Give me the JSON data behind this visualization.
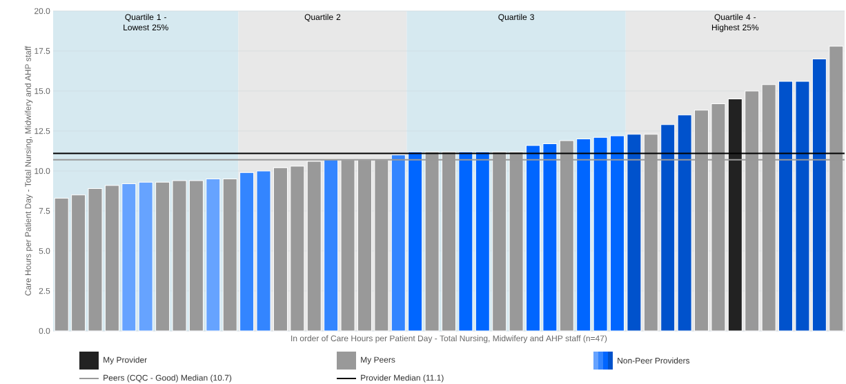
{
  "chart_data": {
    "type": "bar",
    "xlabel": "In order of Care Hours per Patient Day - Total Nursing, Midwifery and AHP staff (n=47)",
    "ylabel": "Care Hours per Patient Day - Total Nursing, Midwifery and AHP staff",
    "categories": [
      null,
      null,
      null,
      null,
      null,
      null,
      null,
      null,
      null,
      null,
      null,
      null,
      null,
      null,
      null,
      null,
      null,
      null,
      null,
      null,
      null,
      null,
      null,
      null,
      null,
      null,
      null,
      null,
      null,
      null,
      null,
      null,
      null,
      null,
      null,
      null,
      null,
      null,
      null,
      null,
      null,
      null,
      null,
      null,
      null,
      null,
      null
    ],
    "series": [
      {
        "name": "My Provider",
        "color": "#222222",
        "values": [
          null,
          null,
          null,
          null,
          null,
          null,
          null,
          null,
          null,
          null,
          null,
          null,
          null,
          null,
          null,
          null,
          null,
          null,
          null,
          null,
          null,
          null,
          null,
          null,
          null,
          null,
          null,
          null,
          null,
          null,
          null,
          null,
          null,
          null,
          null,
          null,
          null,
          null,
          null,
          null,
          14.5,
          null,
          null,
          null,
          null,
          null,
          null
        ]
      },
      {
        "name": "My Peers",
        "color": "#999999",
        "values": [
          8.3,
          8.5,
          8.9,
          9.1,
          null,
          null,
          9.3,
          9.4,
          9.4,
          null,
          9.5,
          null,
          null,
          10.2,
          10.3,
          10.6,
          null,
          10.7,
          10.7,
          10.7,
          null,
          null,
          11.2,
          11.2,
          null,
          null,
          11.2,
          11.2,
          null,
          null,
          11.9,
          null,
          null,
          null,
          null,
          12.3,
          null,
          null,
          13.8,
          14.2,
          null,
          15.0,
          15.4,
          null,
          null,
          null,
          17.8
        ]
      },
      {
        "name": "Non-Peer Providers",
        "color": "#0066ff",
        "values": [
          null,
          null,
          null,
          null,
          9.2,
          9.3,
          null,
          null,
          null,
          9.5,
          null,
          9.9,
          10.0,
          null,
          null,
          null,
          10.7,
          null,
          null,
          null,
          11.0,
          11.2,
          null,
          null,
          11.2,
          11.2,
          null,
          null,
          11.6,
          11.7,
          null,
          12.0,
          12.1,
          12.2,
          12.3,
          null,
          12.9,
          13.5,
          null,
          null,
          null,
          null,
          null,
          15.6,
          15.6,
          17.0,
          null
        ],
        "colors": [
          null,
          null,
          null,
          null,
          "#66a3ff",
          "#66a3ff",
          null,
          null,
          null,
          "#66a3ff",
          null,
          "#3385ff",
          "#3385ff",
          null,
          null,
          null,
          "#3385ff",
          null,
          null,
          null,
          "#3385ff",
          "#0066ff",
          null,
          null,
          "#0066ff",
          "#0066ff",
          null,
          null,
          "#0066ff",
          "#0066ff",
          null,
          "#0066ff",
          "#0066ff",
          "#0066ff",
          "#0052cc",
          null,
          "#0052cc",
          "#0052cc",
          null,
          null,
          null,
          null,
          null,
          "#0052cc",
          "#0052cc",
          "#0052cc",
          null
        ]
      }
    ],
    "ylim": [
      0,
      20
    ],
    "yticks": [
      {
        "value": 0,
        "label": "0.0"
      },
      {
        "value": 2.5,
        "label": "2.5"
      },
      {
        "value": 5,
        "label": "5.0"
      },
      {
        "value": 7.5,
        "label": "7.5"
      },
      {
        "value": 10,
        "label": "10.0"
      },
      {
        "value": 12.5,
        "label": "12.5"
      },
      {
        "value": 15,
        "label": "15.0"
      },
      {
        "value": 17.5,
        "label": "17.5"
      },
      {
        "value": 20,
        "label": "20.0"
      }
    ],
    "ref_lines": [
      {
        "axis": "y",
        "value": 10.7,
        "label": "Peers (CQC - Good) Median (10.7)",
        "color": "#999999"
      },
      {
        "axis": "y",
        "value": 11.1,
        "label": "Provider Median (11.1)",
        "color": "#000000"
      }
    ],
    "annotations": [
      "Quartile 1 - Lowest 25%",
      "Quartile 2",
      "Quartile 3",
      "Quartile 4 - Highest 25%"
    ],
    "grid": "y",
    "legend": "bottom"
  }
}
